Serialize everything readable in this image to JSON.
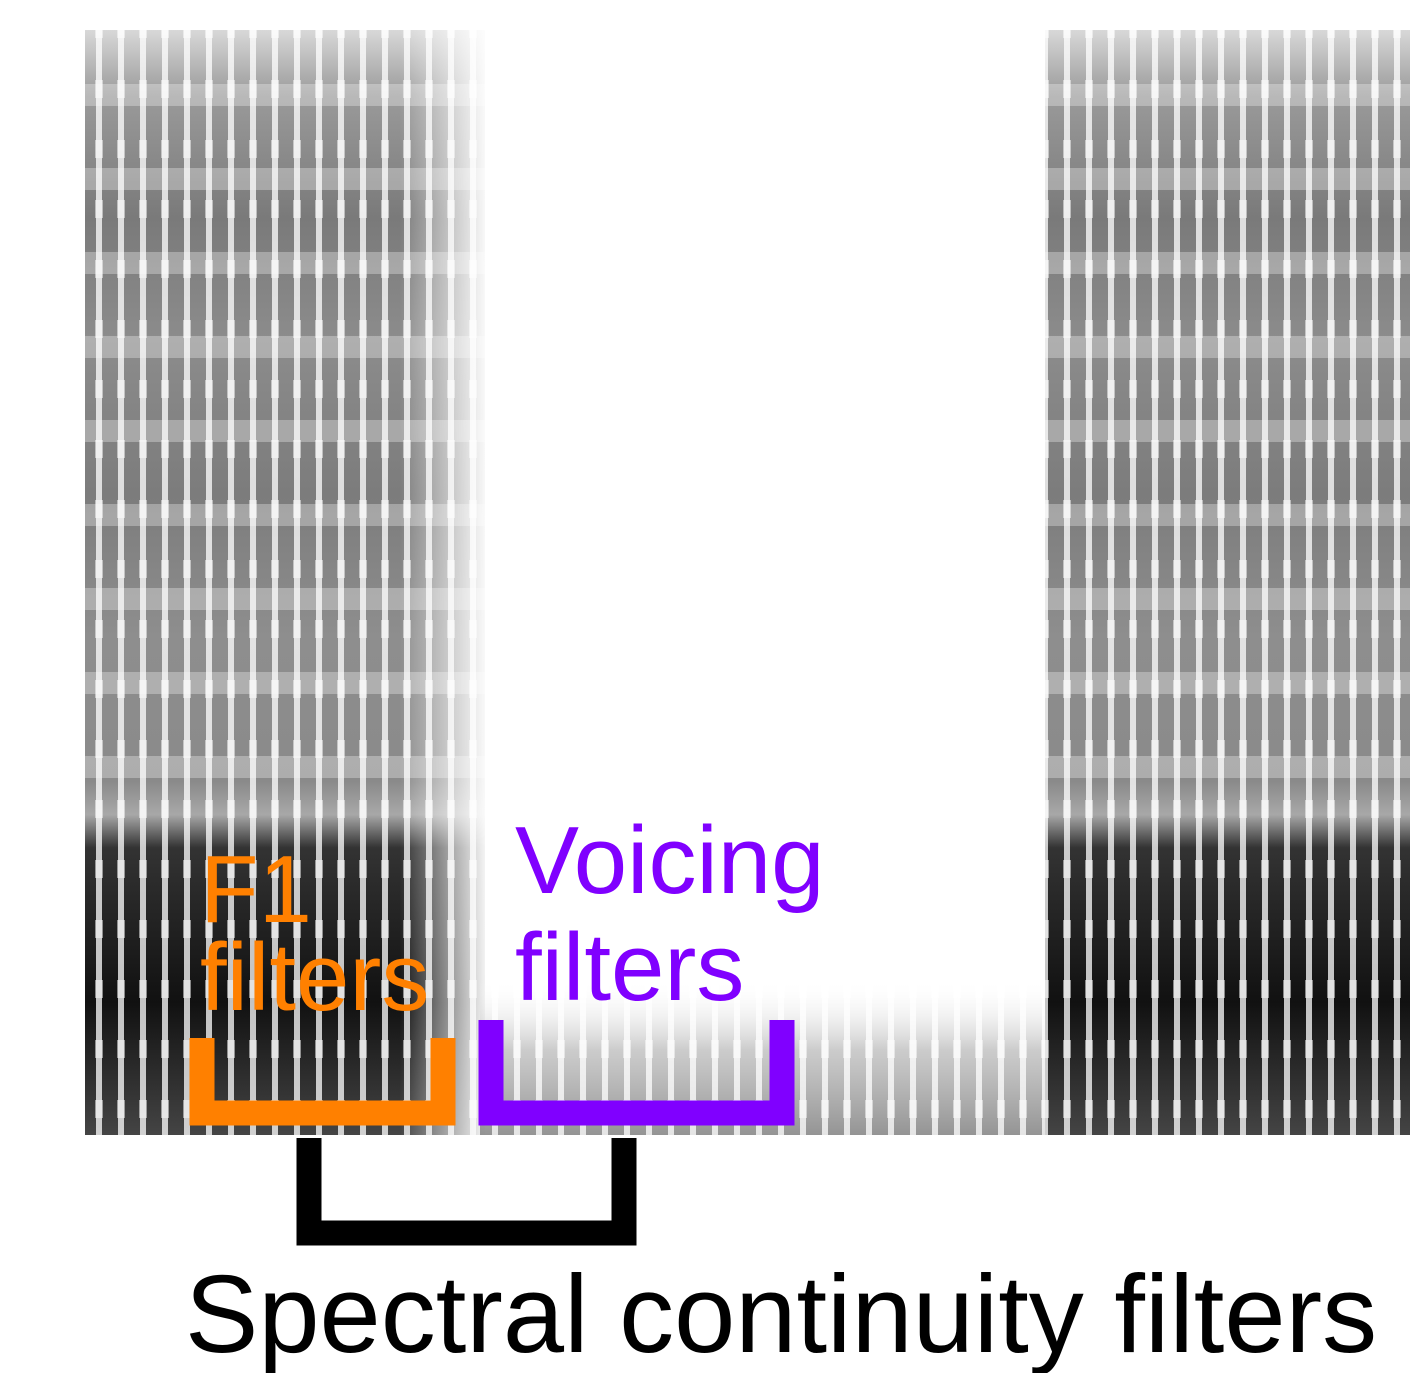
{
  "labels": {
    "f1": {
      "lines": [
        "F1",
        "filters"
      ]
    },
    "voicing": {
      "lines": [
        "Voicing",
        "filters"
      ]
    },
    "spectral_continuity": "Spectral continuity filters"
  }
}
